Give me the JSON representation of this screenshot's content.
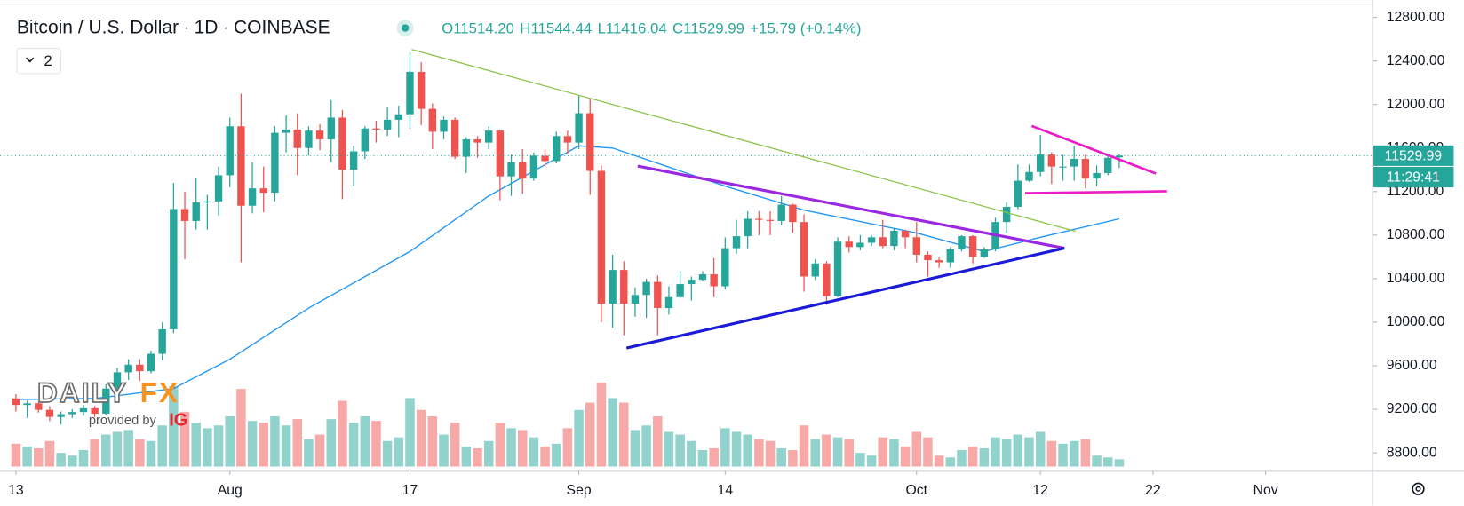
{
  "chart_data": {
    "type": "candlestick",
    "title": "Bitcoin / U.S. Dollar",
    "interval": "1D",
    "exchange": "COINBASE",
    "ohlc_texts": [
      "O11514.20",
      "H11544.44",
      "L11416.04",
      "C11529.99",
      "+15.79 (+0.14%)"
    ],
    "indicator_count": "2",
    "countdown": "11:29:41",
    "watermark": {
      "brand": "DAILY",
      "brand_accent": "FX",
      "provider": "provided by",
      "provider_name": "IG"
    },
    "up_color": "#26a69a",
    "down_color": "#ef5350",
    "x": [
      "Jul 13",
      "Jul 14",
      "Jul 15",
      "Jul 16",
      "Jul 17",
      "Jul 18",
      "Jul 19",
      "Jul 20",
      "Jul 21",
      "Jul 22",
      "Jul 23",
      "Jul 24",
      "Jul 25",
      "Jul 26",
      "Jul 27",
      "Jul 28",
      "Jul 29",
      "Jul 30",
      "Jul 31",
      "Aug 1",
      "Aug 2",
      "Aug 3",
      "Aug 4",
      "Aug 5",
      "Aug 6",
      "Aug 7",
      "Aug 8",
      "Aug 9",
      "Aug 10",
      "Aug 11",
      "Aug 12",
      "Aug 13",
      "Aug 14",
      "Aug 15",
      "Aug 16",
      "Aug 17",
      "Aug 18",
      "Aug 19",
      "Aug 20",
      "Aug 21",
      "Aug 22",
      "Aug 23",
      "Aug 24",
      "Aug 25",
      "Aug 26",
      "Aug 27",
      "Aug 28",
      "Aug 29",
      "Aug 30",
      "Aug 31",
      "Sep 1",
      "Sep 2",
      "Sep 3",
      "Sep 4",
      "Sep 5",
      "Sep 6",
      "Sep 7",
      "Sep 8",
      "Sep 9",
      "Sep 10",
      "Sep 11",
      "Sep 12",
      "Sep 13",
      "Sep 14",
      "Sep 15",
      "Sep 16",
      "Sep 17",
      "Sep 18",
      "Sep 19",
      "Sep 20",
      "Sep 21",
      "Sep 22",
      "Sep 23",
      "Sep 24",
      "Sep 25",
      "Sep 26",
      "Sep 27",
      "Sep 28",
      "Sep 29",
      "Sep 30",
      "Oct 1",
      "Oct 2",
      "Oct 3",
      "Oct 4",
      "Oct 5",
      "Oct 6",
      "Oct 7",
      "Oct 8",
      "Oct 9",
      "Oct 10",
      "Oct 11",
      "Oct 12",
      "Oct 13",
      "Oct 14",
      "Oct 15",
      "Oct 16",
      "Oct 17",
      "Oct 18",
      "Oct 19"
    ],
    "open": [
      9300,
      9240,
      9255,
      9195,
      9130,
      9155,
      9175,
      9210,
      9160,
      9390,
      9540,
      9610,
      9550,
      9710,
      9935,
      11040,
      10930,
      11100,
      11110,
      11350,
      11800,
      11070,
      11230,
      11190,
      11740,
      11770,
      11600,
      11760,
      11680,
      11880,
      11400,
      11570,
      11780,
      11770,
      11860,
      11910,
      12300,
      11960,
      11750,
      11860,
      11520,
      11680,
      11650,
      11760,
      11340,
      11470,
      11320,
      11530,
      11480,
      11710,
      11650,
      11920,
      11390,
      10170,
      10480,
      10170,
      10250,
      10370,
      10130,
      10230,
      10350,
      10390,
      10440,
      10330,
      10680,
      10790,
      10950,
      10940,
      10930,
      11080,
      10920,
      10420,
      10540,
      10240,
      10740,
      10690,
      10730,
      10780,
      10700,
      10840,
      10780,
      10620,
      10570,
      10550,
      10670,
      10790,
      10600,
      10670,
      10920,
      11060,
      11300,
      11380,
      11540,
      11430,
      11430,
      11500,
      11320,
      11370,
      11514.2
    ],
    "high": [
      9340,
      9280,
      9270,
      9230,
      9180,
      9200,
      9240,
      9230,
      9430,
      9580,
      9660,
      9660,
      9740,
      10000,
      11280,
      11200,
      11330,
      11170,
      11430,
      11880,
      12100,
      11470,
      11430,
      11800,
      11900,
      11920,
      11800,
      11820,
      12040,
      11950,
      11620,
      11800,
      11850,
      11980,
      11990,
      12480,
      12390,
      12010,
      11890,
      11880,
      11700,
      11710,
      11800,
      11770,
      11540,
      11590,
      11560,
      11590,
      11750,
      11760,
      12080,
      12050,
      11440,
      10620,
      10560,
      10320,
      10400,
      10430,
      10330,
      10470,
      10420,
      10470,
      10590,
      10780,
      10940,
      11020,
      11020,
      11020,
      11160,
      11090,
      10990,
      10580,
      10560,
      10780,
      10790,
      10800,
      10800,
      10940,
      10860,
      10850,
      10920,
      10650,
      10600,
      10690,
      10800,
      10800,
      10690,
      10960,
      11100,
      11450,
      11450,
      11720,
      11560,
      11540,
      11620,
      11540,
      11440,
      11530,
      11544.44
    ],
    "low": [
      9180,
      9120,
      9170,
      9090,
      9060,
      9120,
      9140,
      9130,
      9150,
      9290,
      9470,
      9460,
      9530,
      9650,
      9900,
      10580,
      10850,
      10850,
      10980,
      11240,
      10550,
      11000,
      11010,
      11110,
      11560,
      11350,
      11530,
      11580,
      11470,
      11130,
      11250,
      11500,
      11650,
      11710,
      11700,
      11780,
      11810,
      11590,
      11680,
      11500,
      11370,
      11510,
      11590,
      11120,
      11160,
      11180,
      11300,
      11430,
      11460,
      11550,
      11590,
      11170,
      10000,
      9950,
      9880,
      10050,
      10040,
      9880,
      10070,
      10220,
      10200,
      10380,
      10230,
      10300,
      10630,
      10680,
      10800,
      10800,
      10890,
      10820,
      10280,
      10390,
      10160,
      10230,
      10640,
      10660,
      10700,
      10680,
      10660,
      10680,
      10550,
      10420,
      10500,
      10500,
      10650,
      10540,
      10590,
      10650,
      10820,
      11040,
      11290,
      11340,
      11270,
      11300,
      11300,
      11230,
      11250,
      11350,
      11416.04
    ],
    "close": [
      9240,
      9255,
      9195,
      9130,
      9155,
      9175,
      9210,
      9160,
      9390,
      9540,
      9610,
      9550,
      9710,
      9935,
      11040,
      10930,
      11100,
      11110,
      11350,
      11800,
      11070,
      11230,
      11190,
      11740,
      11770,
      11600,
      11760,
      11680,
      11880,
      11400,
      11570,
      11780,
      11770,
      11860,
      11910,
      12300,
      11960,
      11750,
      11860,
      11520,
      11680,
      11650,
      11760,
      11340,
      11470,
      11320,
      11530,
      11480,
      11710,
      11650,
      11920,
      11390,
      10170,
      10480,
      10170,
      10250,
      10370,
      10130,
      10230,
      10350,
      10390,
      10440,
      10330,
      10680,
      10790,
      10950,
      10940,
      10930,
      11080,
      10920,
      10420,
      10540,
      10240,
      10740,
      10690,
      10730,
      10780,
      10700,
      10840,
      10780,
      10620,
      10570,
      10550,
      10670,
      10790,
      10600,
      10670,
      10920,
      11060,
      11300,
      11380,
      11540,
      11430,
      11430,
      11500,
      11320,
      11370,
      11510,
      11529.99
    ],
    "volume": [
      25,
      22,
      20,
      28,
      15,
      12,
      18,
      30,
      35,
      38,
      40,
      30,
      28,
      45,
      88,
      60,
      48,
      42,
      45,
      55,
      85,
      50,
      48,
      55,
      45,
      52,
      30,
      35,
      52,
      72,
      48,
      55,
      50,
      28,
      32,
      75,
      62,
      55,
      35,
      48,
      22,
      20,
      28,
      48,
      42,
      40,
      32,
      22,
      25,
      42,
      62,
      70,
      92,
      75,
      70,
      40,
      45,
      55,
      38,
      35,
      28,
      18,
      20,
      42,
      38,
      35,
      30,
      28,
      20,
      18,
      45,
      30,
      35,
      32,
      30,
      15,
      12,
      32,
      30,
      22,
      38,
      32,
      12,
      10,
      18,
      22,
      20,
      32,
      30,
      35,
      32,
      38,
      28,
      25,
      28,
      30,
      12,
      10,
      8
    ],
    "ma": {
      "color": "#2196f3",
      "x": [
        "Jul 13",
        "Jul 20",
        "Jul 27",
        "Aug 1",
        "Aug 8",
        "Aug 17",
        "Aug 24",
        "Sep 1",
        "Sep 4",
        "Sep 14",
        "Sep 21",
        "Oct 1",
        "Oct 7",
        "Oct 12",
        "Oct 19"
      ],
      "values": [
        9290,
        9300,
        9390,
        9660,
        10130,
        10650,
        11160,
        11620,
        11600,
        11250,
        11030,
        10820,
        10650,
        10780,
        10950
      ]
    },
    "xlim": [
      "Jul 12",
      "Nov 10"
    ],
    "xticks": [
      {
        "value": "Jul 13",
        "label": "13"
      },
      {
        "value": "Aug 1",
        "label": "Aug"
      },
      {
        "value": "Aug 17",
        "label": "17"
      },
      {
        "value": "Sep 1",
        "label": "Sep"
      },
      {
        "value": "Sep 14",
        "label": "14"
      },
      {
        "value": "Oct 1",
        "label": "Oct"
      },
      {
        "value": "Oct 12",
        "label": "12"
      },
      {
        "value": "Oct 22",
        "label": "22"
      },
      {
        "value": "Nov 1",
        "label": "Nov"
      }
    ],
    "ylim": [
      8700,
      12900
    ],
    "yticks": [
      {
        "value": 8800,
        "label": "8800.00"
      },
      {
        "value": 9200,
        "label": "9200.00"
      },
      {
        "value": 9600,
        "label": "9600.00"
      },
      {
        "value": 10000,
        "label": "10000.00"
      },
      {
        "value": 10400,
        "label": "10400.00"
      },
      {
        "value": 10800,
        "label": "10800.00"
      },
      {
        "value": 11200,
        "label": "11200.00"
      },
      {
        "value": 11600,
        "label": "11600.00"
      },
      {
        "value": 12000,
        "label": "12000.00"
      },
      {
        "value": 12400,
        "label": "12400.00"
      },
      {
        "value": 12800,
        "label": "12800.00"
      }
    ],
    "grid": false
  }
}
